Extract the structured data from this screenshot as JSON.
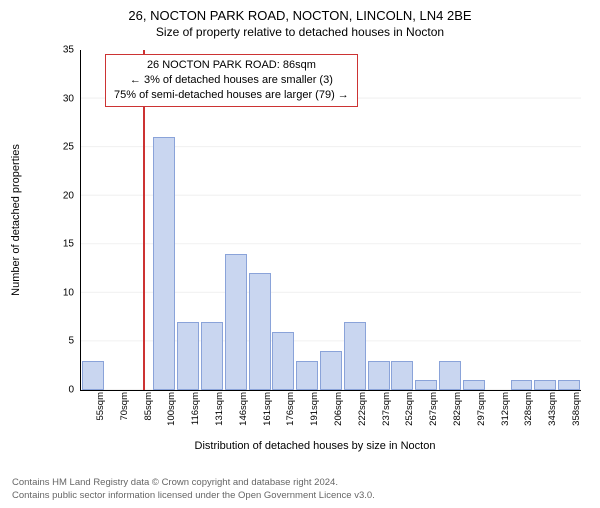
{
  "title": "26, NOCTON PARK ROAD, NOCTON, LINCOLN, LN4 2BE",
  "subtitle": "Size of property relative to detached houses in Nocton",
  "annotation": {
    "line1": "26 NOCTON PARK ROAD: 86sqm",
    "line2": "← 3% of detached houses are smaller (3)",
    "line3": "75% of semi-detached houses are larger (79) →"
  },
  "ylabel": "Number of detached properties",
  "xlabel": "Distribution of detached houses by size in Nocton",
  "footer1": "Contains HM Land Registry data © Crown copyright and database right 2024.",
  "footer2": "Contains public sector information licensed under the Open Government Licence v3.0.",
  "chart": {
    "type": "bar",
    "ylim_max": 35,
    "ytick_step": 5,
    "marker_x_index": 2.1,
    "marker_color": "#cc3333",
    "bar_fill": "#c9d6f0",
    "bar_stroke": "#8aa3d9",
    "grid_color": "#f0f0f0",
    "bg": "#ffffff",
    "title_fontsize": 13,
    "subtitle_fontsize": 12,
    "axis_fontsize": 11,
    "tick_fontsize": 10,
    "annotation_fontsize": 11,
    "categories": [
      "55sqm",
      "70sqm",
      "85sqm",
      "100sqm",
      "116sqm",
      "131sqm",
      "146sqm",
      "161sqm",
      "176sqm",
      "191sqm",
      "206sqm",
      "222sqm",
      "237sqm",
      "252sqm",
      "267sqm",
      "282sqm",
      "297sqm",
      "312sqm",
      "328sqm",
      "343sqm",
      "358sqm"
    ],
    "values": [
      3,
      0,
      0,
      26,
      7,
      7,
      14,
      12,
      6,
      3,
      4,
      7,
      3,
      3,
      1,
      3,
      1,
      0,
      1,
      1,
      1
    ]
  }
}
